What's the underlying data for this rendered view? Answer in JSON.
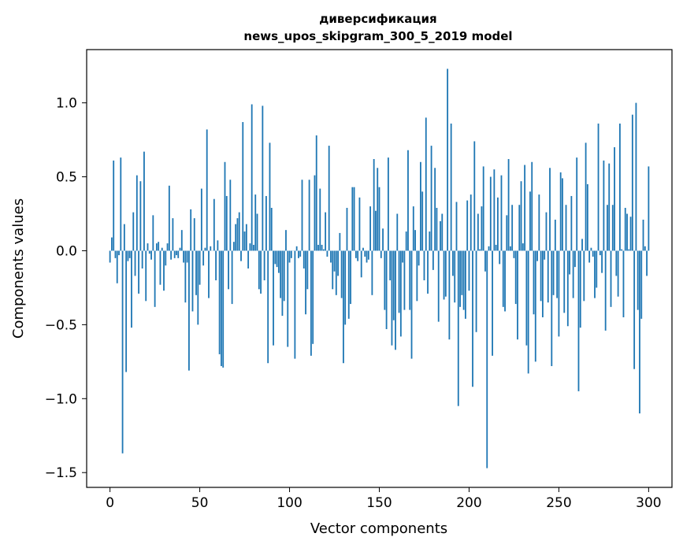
{
  "chart_data": {
    "type": "bar",
    "title": "диверсификация",
    "subtitle": "news_upos_skipgram_300_5_2019 model",
    "xlabel": "Vector components",
    "ylabel": "Components values",
    "xlim": [
      -13,
      313
    ],
    "ylim": [
      -1.6,
      1.36
    ],
    "x_ticks": [
      {
        "value": 0,
        "label": "0"
      },
      {
        "value": 50,
        "label": "50"
      },
      {
        "value": 100,
        "label": "100"
      },
      {
        "value": 150,
        "label": "150"
      },
      {
        "value": 200,
        "label": "200"
      },
      {
        "value": 250,
        "label": "250"
      },
      {
        "value": 300,
        "label": "300"
      }
    ],
    "y_ticks": [
      {
        "value": 1.0,
        "label": "1.0"
      },
      {
        "value": 0.5,
        "label": "0.5"
      },
      {
        "value": 0.0,
        "label": "0.0"
      },
      {
        "value": -0.5,
        "label": "−0.5"
      },
      {
        "value": -1.0,
        "label": "−1.0"
      },
      {
        "value": -1.5,
        "label": "−1.5"
      }
    ],
    "grid": false,
    "bar_color": "#1f77b4",
    "values": [
      -0.08,
      0.09,
      0.61,
      -0.05,
      -0.22,
      -0.03,
      0.63,
      -1.37,
      0.18,
      -0.82,
      -0.07,
      -0.05,
      -0.52,
      0.26,
      -0.17,
      0.51,
      -0.29,
      0.47,
      -0.12,
      0.67,
      -0.34,
      0.05,
      -0.02,
      -0.06,
      0.24,
      -0.38,
      0.05,
      0.06,
      -0.23,
      0.02,
      -0.27,
      -0.1,
      0.05,
      0.44,
      -0.06,
      0.22,
      -0.05,
      -0.03,
      -0.05,
      0.02,
      0.14,
      -0.08,
      -0.35,
      -0.08,
      -0.81,
      0.28,
      -0.41,
      0.22,
      -0.3,
      -0.5,
      -0.23,
      0.42,
      -0.1,
      0.02,
      0.82,
      -0.32,
      0.03,
      0.0,
      0.35,
      -0.2,
      0.07,
      -0.7,
      -0.78,
      -0.79,
      0.6,
      0.37,
      -0.26,
      0.48,
      -0.36,
      0.06,
      0.18,
      0.22,
      0.26,
      -0.07,
      0.87,
      0.13,
      0.18,
      -0.12,
      0.05,
      0.99,
      0.04,
      0.38,
      0.25,
      -0.26,
      -0.29,
      0.98,
      -0.2,
      0.37,
      -0.76,
      0.73,
      0.29,
      -0.64,
      -0.09,
      -0.11,
      -0.15,
      -0.32,
      -0.44,
      -0.34,
      0.14,
      -0.65,
      -0.08,
      -0.05,
      0.0,
      -0.73,
      0.03,
      -0.05,
      -0.04,
      0.48,
      -0.12,
      -0.43,
      -0.26,
      0.48,
      -0.71,
      -0.63,
      0.51,
      0.78,
      0.04,
      0.42,
      0.04,
      0.01,
      0.26,
      -0.04,
      0.71,
      -0.08,
      -0.26,
      -0.14,
      -0.3,
      -0.17,
      0.12,
      -0.32,
      -0.76,
      -0.5,
      0.29,
      -0.46,
      -0.36,
      0.43,
      0.43,
      -0.05,
      -0.07,
      0.36,
      -0.18,
      0.02,
      -0.04,
      -0.08,
      -0.06,
      0.3,
      -0.3,
      0.62,
      0.27,
      0.56,
      0.43,
      -0.05,
      0.15,
      -0.4,
      -0.53,
      0.63,
      -0.2,
      -0.64,
      -0.47,
      -0.67,
      0.25,
      -0.42,
      -0.58,
      -0.08,
      -0.4,
      0.13,
      0.68,
      -0.4,
      -0.73,
      0.3,
      0.14,
      -0.34,
      -0.1,
      0.6,
      0.4,
      -0.2,
      0.9,
      -0.29,
      0.13,
      0.71,
      -0.13,
      0.56,
      0.29,
      -0.48,
      0.2,
      0.25,
      -0.33,
      -0.31,
      1.23,
      -0.6,
      0.86,
      -0.17,
      -0.35,
      0.33,
      -1.05,
      -0.38,
      -0.3,
      -0.4,
      -0.46,
      0.34,
      -0.27,
      0.38,
      -0.92,
      0.74,
      -0.55,
      0.25,
      0.01,
      0.3,
      0.57,
      -0.14,
      -1.47,
      0.03,
      0.5,
      -0.71,
      0.55,
      0.04,
      0.36,
      -0.09,
      0.51,
      -0.38,
      -0.41,
      0.24,
      0.62,
      0.03,
      0.31,
      -0.05,
      -0.36,
      -0.6,
      0.31,
      0.47,
      0.05,
      0.58,
      -0.64,
      -0.83,
      0.4,
      0.6,
      -0.43,
      -0.75,
      -0.07,
      0.38,
      -0.34,
      -0.45,
      -0.06,
      0.26,
      -0.35,
      0.56,
      -0.78,
      -0.3,
      0.21,
      -0.32,
      -0.58,
      0.53,
      0.49,
      -0.42,
      0.31,
      -0.51,
      -0.16,
      0.37,
      -0.32,
      -0.11,
      0.63,
      -0.95,
      -0.52,
      0.08,
      -0.34,
      0.73,
      0.45,
      -0.08,
      0.02,
      -0.04,
      -0.32,
      -0.25,
      0.86,
      -0.03,
      -0.15,
      0.61,
      -0.54,
      0.31,
      0.59,
      -0.38,
      0.31,
      0.7,
      -0.17,
      -0.31,
      0.86,
      0.01,
      -0.45,
      0.29,
      0.25,
      0.01,
      0.23,
      0.92,
      -0.8,
      1.0,
      -0.4,
      -1.1,
      -0.46,
      0.21,
      0.03,
      -0.17,
      0.57
    ]
  }
}
